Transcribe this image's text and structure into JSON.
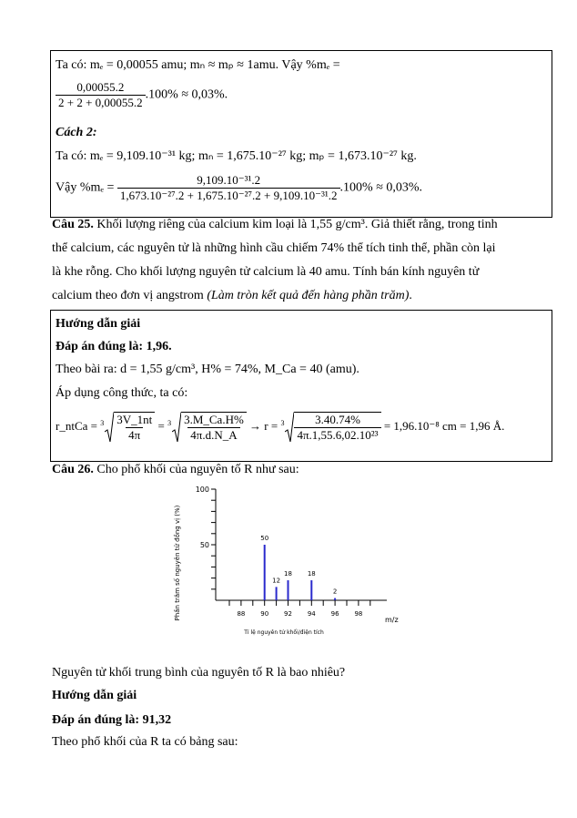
{
  "box1": {
    "line1": "Ta có: mₑ = 0,00055 amu; mₙ ≈ mₚ ≈ 1amu. Vậy %mₑ =",
    "frac1_num": "0,00055.2",
    "frac1_den": "2 + 2 + 0,00055.2",
    "frac1_tail": ".100% ≈ 0,03%.",
    "method2": "Cách 2:",
    "line3": "Ta có: mₑ = 9,109.10⁻³¹ kg; mₙ = 1,675.10⁻²⁷ kg; mₚ = 1,673.10⁻²⁷ kg.",
    "line4_head": "Vậy %mₑ =",
    "frac2_num": "9,109.10⁻³¹.2",
    "frac2_den": "1,673.10⁻²⁷.2 + 1,675.10⁻²⁷.2 + 9,109.10⁻³¹.2",
    "frac2_tail": ".100% ≈ 0,03%."
  },
  "q25": {
    "label": "Câu 25.",
    "lines": [
      "Khối lượng riêng của calcium kim loại là 1,55 g/cm³. Giả thiết rằng, trong tinh",
      "thể calcium, các nguyên tử là những hình cầu chiếm 74% thể tích tinh thể, phần còn lại",
      "là khe rỗng. Cho khối lượng nguyên tử calcium là 40 amu. Tính bán kính nguyên tử"
    ],
    "last_plain": "calcium theo đơn vị angstrom ",
    "last_italic": "(Làm tròn kết quả đến hàng phần trăm)",
    "last_end": "."
  },
  "box2": {
    "heading": "Hướng dẫn giải",
    "answer": "Đáp án đúng là: 1,96.",
    "given": "Theo bài ra: d = 1,55 g/cm³, H% = 74%, M_Ca = 40 (amu).",
    "apply": "Áp dụng công thức, ta có:",
    "f_lhs": "r_ntCa =",
    "f_r1_num": "3V_1nt",
    "f_r1_den": "4π",
    "f_r2_num": "3.M_Ca.H%",
    "f_r2_den": "4π.d.N_A",
    "f_arrow": "→ r =",
    "f_r3_num": "3.40.74%",
    "f_r3_den": "4π.1,55.6,02.10²³",
    "f_result": "= 1,96.10⁻⁸ cm = 1,96 Å."
  },
  "q26": {
    "label": "Câu 26.",
    "text": " Cho phổ khối của nguyên tố R như sau:"
  },
  "chart_data": {
    "type": "bar",
    "x": [
      90,
      91,
      92,
      94,
      96
    ],
    "values": [
      50,
      12,
      18,
      18,
      2
    ],
    "data_labels": [
      "50",
      "12",
      "18",
      "18",
      "2"
    ],
    "xlabel": "Tỉ lệ nguyên tử khối/điện tích",
    "xunit": "m/z",
    "ylabel": "Phần trăm số nguyên tử đồng vị (%)",
    "xlim": [
      87,
      99
    ],
    "ylim": [
      0,
      100
    ],
    "xticks": [
      "88",
      "90",
      "92",
      "94",
      "96",
      "98"
    ],
    "yticks": [
      "50",
      "100"
    ],
    "bar_color": "#2a2acc"
  },
  "after": {
    "question": "Nguyên tử khối trung bình của nguyên tố R là bao nhiêu?",
    "heading": "Hướng dẫn giải",
    "answer": "Đáp án đúng là: 91,32",
    "text": "Theo phổ khối của R ta có bảng sau:"
  }
}
